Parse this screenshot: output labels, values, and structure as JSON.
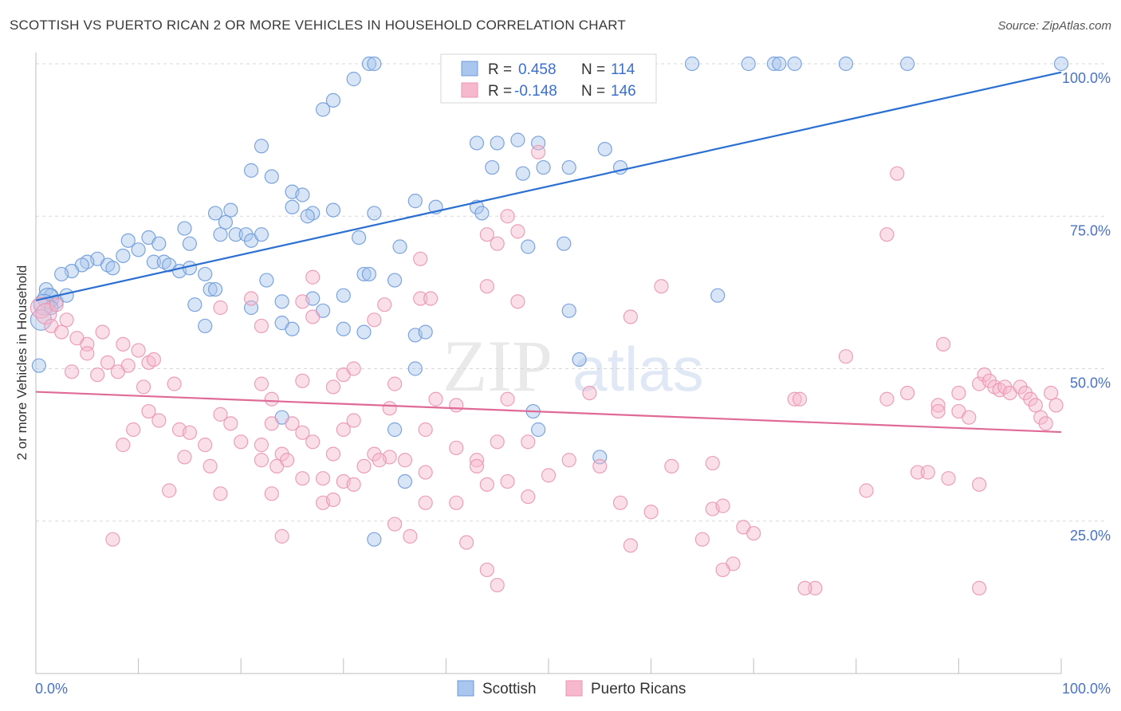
{
  "title": "SCOTTISH VS PUERTO RICAN 2 OR MORE VEHICLES IN HOUSEHOLD CORRELATION CHART",
  "source": "Source: ZipAtlas.com",
  "watermark": {
    "zip": "ZIP",
    "atlas": "atlas"
  },
  "colors": {
    "scottish_fill": "#a9c6ee",
    "scottish_stroke": "#6f9bd9",
    "scottish_line": "#2a6fd1",
    "pr_fill": "#f6b8cc",
    "pr_stroke": "#e996b2",
    "pr_line": "#e06a96",
    "tick_text": "#4a72c4",
    "grid": "#d8d8d8"
  },
  "legend": {
    "rows": [
      {
        "r_label": "R =",
        "r_value": "0.458",
        "n_label": "N =",
        "n_value": "114"
      },
      {
        "r_label": "R =",
        "r_value": "-0.148",
        "n_label": "N =",
        "n_value": "146"
      }
    ]
  },
  "bottom_legend": {
    "items": [
      "Scottish",
      "Puerto Ricans"
    ]
  },
  "chart_data": {
    "type": "scatter",
    "ylabel": "2 or more Vehicles in Household",
    "xlim": [
      0,
      100
    ],
    "ylim": [
      0,
      100
    ],
    "x_tick_labels": [
      "0.0%",
      "100.0%"
    ],
    "y_ticks": [
      25,
      50,
      75,
      100
    ],
    "y_tick_labels": [
      "25.0%",
      "50.0%",
      "75.0%",
      "100.0%"
    ],
    "series": [
      {
        "name": "Scottish",
        "trend": {
          "x": [
            0,
            100
          ],
          "y": [
            61.2,
            98.6
          ]
        },
        "points": [
          [
            32.5,
            100
          ],
          [
            33,
            100
          ],
          [
            56,
            100
          ],
          [
            58,
            100
          ],
          [
            59,
            100
          ],
          [
            64,
            100
          ],
          [
            69.5,
            100
          ],
          [
            72,
            100
          ],
          [
            72.5,
            100
          ],
          [
            74,
            100
          ],
          [
            79,
            100
          ],
          [
            85,
            100
          ],
          [
            100,
            100
          ],
          [
            31,
            97.5
          ],
          [
            29,
            94
          ],
          [
            28,
            92.5
          ],
          [
            43,
            87
          ],
          [
            45,
            87
          ],
          [
            47,
            87.5
          ],
          [
            49,
            87
          ],
          [
            55.5,
            86
          ],
          [
            22,
            86.5
          ],
          [
            44.5,
            83
          ],
          [
            47.5,
            82
          ],
          [
            49.5,
            83
          ],
          [
            57,
            83
          ],
          [
            52,
            83
          ],
          [
            21,
            82.5
          ],
          [
            23,
            81.5
          ],
          [
            25,
            79
          ],
          [
            26,
            78.5
          ],
          [
            37,
            77.5
          ],
          [
            39,
            76.5
          ],
          [
            43,
            76.5
          ],
          [
            43.5,
            75.5
          ],
          [
            27,
            75.5
          ],
          [
            29,
            76
          ],
          [
            33,
            75.5
          ],
          [
            25,
            76.5
          ],
          [
            26.5,
            75
          ],
          [
            17.5,
            75.5
          ],
          [
            19,
            76
          ],
          [
            18.5,
            74
          ],
          [
            19.5,
            72
          ],
          [
            18,
            72
          ],
          [
            20.5,
            72
          ],
          [
            21,
            71
          ],
          [
            22,
            72
          ],
          [
            14.5,
            73
          ],
          [
            11,
            71.5
          ],
          [
            9,
            71
          ],
          [
            12,
            70.5
          ],
          [
            15,
            70.5
          ],
          [
            31.5,
            71.5
          ],
          [
            35.5,
            70
          ],
          [
            48,
            70
          ],
          [
            51.5,
            70.5
          ],
          [
            10,
            69.5
          ],
          [
            8.5,
            68.5
          ],
          [
            6,
            68
          ],
          [
            5,
            67.5
          ],
          [
            7,
            67
          ],
          [
            7.5,
            66.5
          ],
          [
            4.5,
            67
          ],
          [
            3.5,
            66
          ],
          [
            2.5,
            65.5
          ],
          [
            11.5,
            67.5
          ],
          [
            12.5,
            67.5
          ],
          [
            13,
            67
          ],
          [
            14,
            66
          ],
          [
            15,
            66.5
          ],
          [
            16.5,
            65.5
          ],
          [
            32,
            65.5
          ],
          [
            32.5,
            65.5
          ],
          [
            35,
            64.5
          ],
          [
            22.5,
            64.5
          ],
          [
            1,
            63
          ],
          [
            1.5,
            62
          ],
          [
            2,
            61
          ],
          [
            3,
            62
          ],
          [
            1.2,
            61.5
          ],
          [
            0.8,
            60.5
          ],
          [
            1.5,
            60
          ],
          [
            17,
            63
          ],
          [
            17.5,
            63
          ],
          [
            15.5,
            60.5
          ],
          [
            24,
            61
          ],
          [
            27,
            61.5
          ],
          [
            30,
            62
          ],
          [
            52,
            59.5
          ],
          [
            66.5,
            62
          ],
          [
            0.5,
            58
          ],
          [
            16.5,
            57
          ],
          [
            21,
            60
          ],
          [
            24,
            57.5
          ],
          [
            28,
            59.5
          ],
          [
            30,
            56.5
          ],
          [
            32,
            56
          ],
          [
            25,
            56.5
          ],
          [
            37,
            55.5
          ],
          [
            38,
            56
          ],
          [
            0.3,
            50.5
          ],
          [
            37,
            50
          ],
          [
            53,
            51.5
          ],
          [
            48.5,
            43
          ],
          [
            24,
            42
          ],
          [
            35,
            40
          ],
          [
            49,
            40
          ],
          [
            55,
            35.5
          ],
          [
            36,
            31.5
          ],
          [
            33,
            22
          ]
        ]
      },
      {
        "name": "Puerto Ricans",
        "trend": {
          "x": [
            0,
            100
          ],
          "y": [
            46.2,
            39.6
          ]
        },
        "points": [
          [
            49,
            85.5
          ],
          [
            84,
            82
          ],
          [
            83,
            72
          ],
          [
            46,
            75
          ],
          [
            44,
            72
          ],
          [
            47,
            72.5
          ],
          [
            45,
            70.5
          ],
          [
            37.5,
            68
          ],
          [
            27,
            65
          ],
          [
            44,
            63.5
          ],
          [
            61,
            63.5
          ],
          [
            21,
            61.5
          ],
          [
            26,
            61
          ],
          [
            37.5,
            61.5
          ],
          [
            38.5,
            61.5
          ],
          [
            47,
            61
          ],
          [
            34,
            60.5
          ],
          [
            22,
            57
          ],
          [
            27,
            58.5
          ],
          [
            33,
            58
          ],
          [
            18,
            60
          ],
          [
            58,
            58.5
          ],
          [
            0.5,
            60
          ],
          [
            1,
            59
          ],
          [
            1.5,
            57
          ],
          [
            2,
            60.5
          ],
          [
            2.5,
            56
          ],
          [
            3,
            58
          ],
          [
            4,
            55
          ],
          [
            5,
            54
          ],
          [
            6.5,
            56
          ],
          [
            8.5,
            54
          ],
          [
            10,
            53
          ],
          [
            11,
            51
          ],
          [
            5,
            52.5
          ],
          [
            7,
            51
          ],
          [
            9,
            50.5
          ],
          [
            11.5,
            51.5
          ],
          [
            3.5,
            49.5
          ],
          [
            6,
            49
          ],
          [
            8,
            49.5
          ],
          [
            22,
            47.5
          ],
          [
            13.5,
            47.5
          ],
          [
            10.5,
            47
          ],
          [
            23,
            45
          ],
          [
            26,
            48
          ],
          [
            29,
            47
          ],
          [
            30,
            49
          ],
          [
            31,
            50
          ],
          [
            39,
            45
          ],
          [
            46,
            45
          ],
          [
            79,
            52
          ],
          [
            88.5,
            54
          ],
          [
            35,
            47.5
          ],
          [
            34.5,
            43.5
          ],
          [
            41,
            44
          ],
          [
            54,
            46
          ],
          [
            74,
            45
          ],
          [
            74.5,
            45
          ],
          [
            83,
            45
          ],
          [
            85,
            46
          ],
          [
            88,
            44
          ],
          [
            88,
            43
          ],
          [
            90,
            46
          ],
          [
            90,
            43
          ],
          [
            91,
            42
          ],
          [
            92,
            47.5
          ],
          [
            92.5,
            49
          ],
          [
            93,
            48
          ],
          [
            93.5,
            47
          ],
          [
            94,
            46.5
          ],
          [
            94.5,
            47
          ],
          [
            95,
            46
          ],
          [
            96,
            47
          ],
          [
            96.5,
            46
          ],
          [
            97,
            45
          ],
          [
            97.5,
            44
          ],
          [
            98,
            42
          ],
          [
            98.5,
            41
          ],
          [
            99,
            46
          ],
          [
            99.5,
            44
          ],
          [
            11,
            43
          ],
          [
            12,
            41.5
          ],
          [
            14,
            40
          ],
          [
            15,
            39.5
          ],
          [
            16.5,
            37.5
          ],
          [
            18,
            42.5
          ],
          [
            19,
            41
          ],
          [
            20,
            38
          ],
          [
            22,
            37.5
          ],
          [
            23,
            41
          ],
          [
            24,
            36
          ],
          [
            25,
            41
          ],
          [
            26,
            39.5
          ],
          [
            27,
            38
          ],
          [
            29,
            36
          ],
          [
            30,
            40
          ],
          [
            31,
            41.5
          ],
          [
            33,
            36
          ],
          [
            34.5,
            35.5
          ],
          [
            38,
            40
          ],
          [
            41,
            37
          ],
          [
            43,
            35
          ],
          [
            45,
            38
          ],
          [
            48,
            38
          ],
          [
            8.5,
            37.5
          ],
          [
            9.5,
            40
          ],
          [
            14.5,
            35.5
          ],
          [
            17,
            34
          ],
          [
            22,
            35
          ],
          [
            23.5,
            34
          ],
          [
            24.5,
            35
          ],
          [
            26,
            32
          ],
          [
            28,
            32
          ],
          [
            30,
            31.5
          ],
          [
            31,
            31
          ],
          [
            32,
            34
          ],
          [
            33.5,
            35
          ],
          [
            36,
            35
          ],
          [
            38,
            33
          ],
          [
            43,
            34
          ],
          [
            44,
            31
          ],
          [
            46,
            31.5
          ],
          [
            50,
            32.5
          ],
          [
            52,
            35
          ],
          [
            55,
            34
          ],
          [
            57,
            28
          ],
          [
            62,
            34
          ],
          [
            66,
            34.5
          ],
          [
            13,
            30
          ],
          [
            18,
            29.5
          ],
          [
            23,
            29.5
          ],
          [
            28,
            28
          ],
          [
            29,
            28.5
          ],
          [
            38,
            28
          ],
          [
            41,
            28
          ],
          [
            48,
            29
          ],
          [
            60,
            26.5
          ],
          [
            66,
            27
          ],
          [
            67,
            27.5
          ],
          [
            81,
            30
          ],
          [
            86,
            33
          ],
          [
            87,
            33
          ],
          [
            89,
            32
          ],
          [
            92,
            31
          ],
          [
            7.5,
            22
          ],
          [
            24,
            22.5
          ],
          [
            35,
            24.5
          ],
          [
            36.5,
            22.5
          ],
          [
            42,
            21.5
          ],
          [
            58,
            21
          ],
          [
            65,
            22
          ],
          [
            69,
            24
          ],
          [
            70,
            23
          ],
          [
            44,
            17
          ],
          [
            45,
            14.5
          ],
          [
            68,
            18
          ],
          [
            76,
            14
          ],
          [
            67,
            17
          ],
          [
            75,
            14
          ],
          [
            92,
            14
          ]
        ]
      }
    ]
  }
}
